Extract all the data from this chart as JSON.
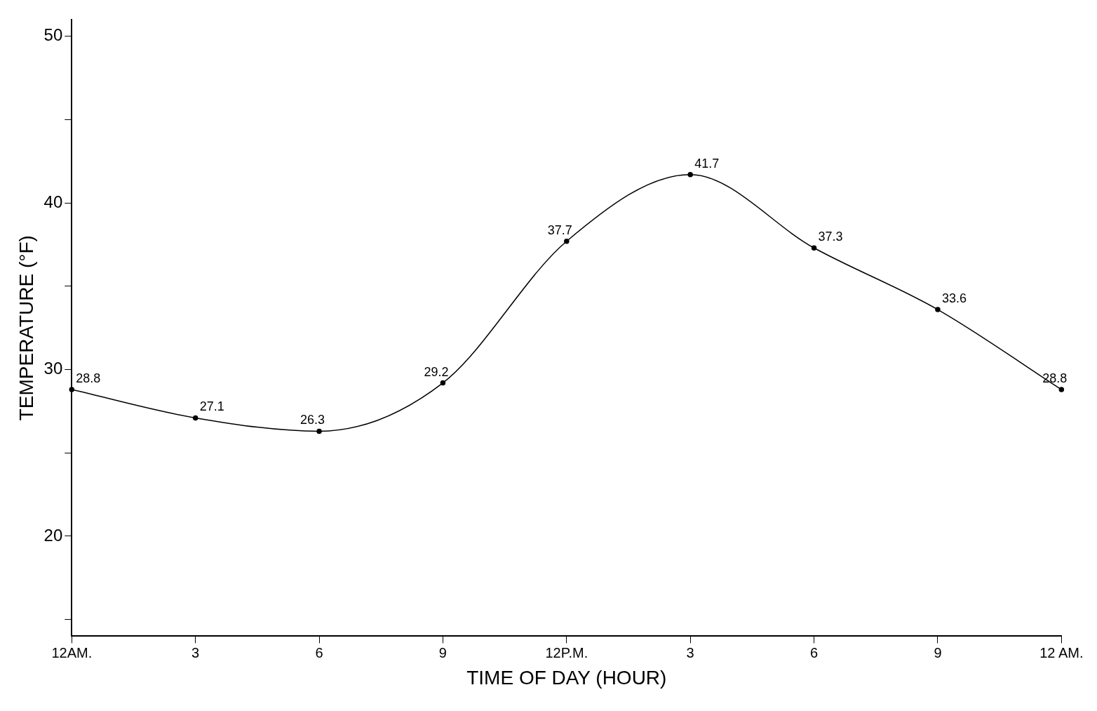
{
  "chart_data": {
    "type": "line",
    "xlabel": "TIME OF DAY (HOUR)",
    "ylabel": "TEMPERATURE (°F)",
    "categories": [
      "12AM.",
      "3",
      "6",
      "9",
      "12P.M.",
      "3",
      "6",
      "9",
      "12 AM."
    ],
    "values": [
      28.8,
      27.1,
      26.3,
      29.2,
      37.7,
      41.7,
      37.3,
      33.6,
      28.8
    ],
    "color": "#000000",
    "marker": "circle",
    "line_style": "solid",
    "data_labels": true,
    "grid": false,
    "legend": false,
    "ylim": [
      14,
      51
    ],
    "yticks": [
      {
        "value": 15,
        "label": null
      },
      20,
      {
        "value": 25,
        "label": null
      },
      30,
      {
        "value": 35,
        "label": null
      },
      40,
      {
        "value": 45,
        "label": null
      },
      50
    ]
  }
}
